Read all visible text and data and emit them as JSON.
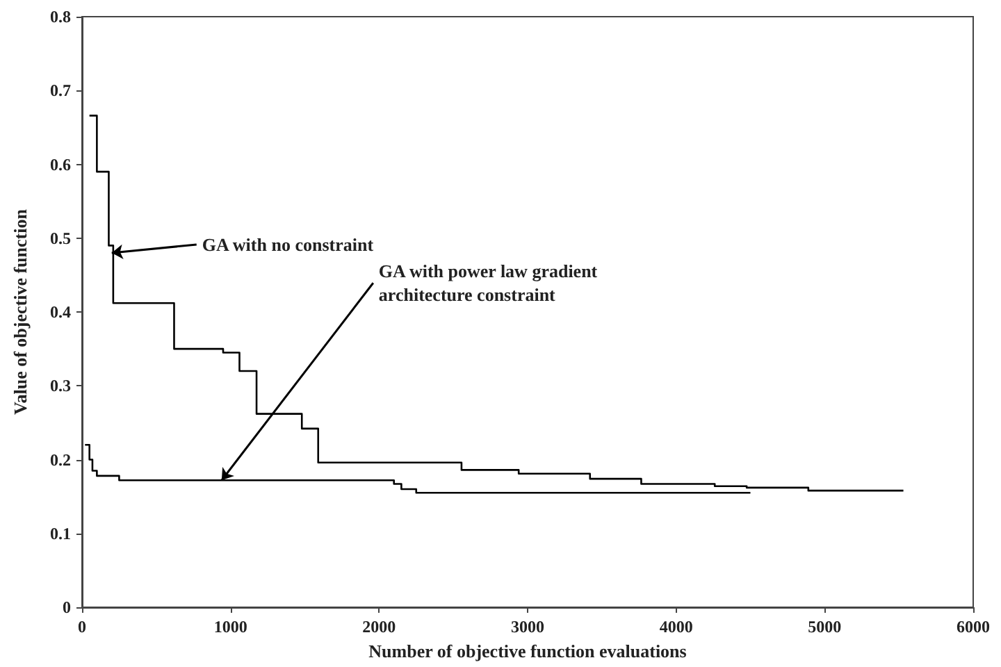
{
  "chart_data": {
    "type": "step",
    "xlabel": "Number of objective function evaluations",
    "ylabel": "Value of objective function",
    "series": [
      {
        "color": "#000000",
        "x": [
          50,
          100,
          180,
          210,
          620,
          950,
          1060,
          1175,
          1480,
          1590,
          2555,
          2940,
          3420,
          3765,
          4260,
          4475,
          4890,
          5530
        ],
        "values": [
          0.666,
          0.59,
          0.49,
          0.412,
          0.35,
          0.345,
          0.32,
          0.262,
          0.242,
          0.196,
          0.186,
          0.181,
          0.174,
          0.167,
          0.164,
          0.162,
          0.158,
          0.158
        ]
      },
      {
        "color": "#000000",
        "x": [
          20,
          50,
          70,
          100,
          250,
          2100,
          2150,
          2250,
          4500
        ],
        "values": [
          0.22,
          0.2,
          0.185,
          0.178,
          0.172,
          0.167,
          0.16,
          0.155,
          0.155
        ]
      }
    ],
    "annotations": [
      {
        "text": "GA with no constraint",
        "x": 200,
        "y": 0.48
      },
      {
        "text": "GA with power law gradient\narchitecture constraint",
        "x": 940,
        "y": 0.172
      }
    ],
    "xlim": [
      0,
      6000
    ],
    "xticks": [
      0,
      1000,
      2000,
      3000,
      4000,
      5000,
      6000
    ],
    "ylim": [
      0,
      0.8
    ],
    "yticks": [
      0,
      0.1,
      0.2,
      0.3,
      0.4,
      0.5,
      0.6,
      0.7,
      0.8
    ],
    "grid": false,
    "marker": "none",
    "line_style": "solid"
  }
}
